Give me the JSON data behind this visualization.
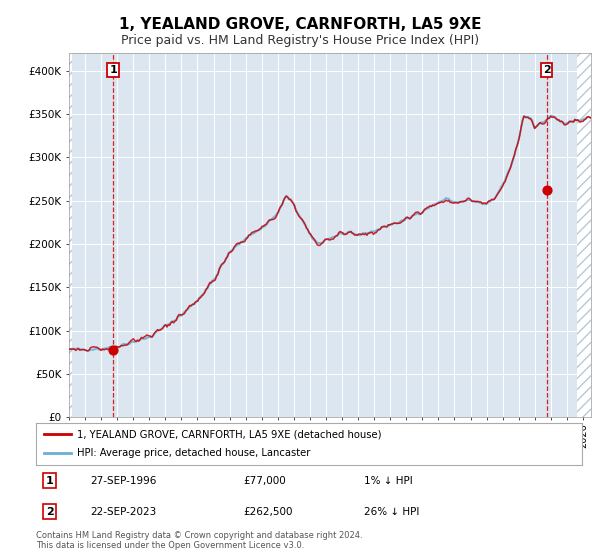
{
  "title": "1, YEALAND GROVE, CARNFORTH, LA5 9XE",
  "subtitle": "Price paid vs. HM Land Registry's House Price Index (HPI)",
  "title_fontsize": 11,
  "subtitle_fontsize": 9,
  "background_color": "#ffffff",
  "plot_bg_color": "#dce6f0",
  "grid_color": "#ffffff",
  "ylim": [
    0,
    420000
  ],
  "yticks": [
    0,
    50000,
    100000,
    150000,
    200000,
    250000,
    300000,
    350000,
    400000
  ],
  "ytick_labels": [
    "£0",
    "£50K",
    "£100K",
    "£150K",
    "£200K",
    "£250K",
    "£300K",
    "£350K",
    "£400K"
  ],
  "xmin_year": 1994.0,
  "xmax_year": 2026.5,
  "hpi_color": "#6baed6",
  "price_color": "#cc0000",
  "sale1_year": 1996.75,
  "sale1_price": 77000,
  "sale1_label": "1",
  "sale2_year": 2023.73,
  "sale2_price": 262500,
  "sale2_label": "2",
  "annotation1_date": "27-SEP-1996",
  "annotation1_price": "£77,000",
  "annotation1_hpi": "1% ↓ HPI",
  "annotation2_date": "22-SEP-2023",
  "annotation2_price": "£262,500",
  "annotation2_hpi": "26% ↓ HPI",
  "legend_line1": "1, YEALAND GROVE, CARNFORTH, LA5 9XE (detached house)",
  "legend_line2": "HPI: Average price, detached house, Lancaster",
  "footer": "Contains HM Land Registry data © Crown copyright and database right 2024.\nThis data is licensed under the Open Government Licence v3.0.",
  "xticks": [
    1994,
    1995,
    1996,
    1997,
    1998,
    1999,
    2000,
    2001,
    2002,
    2003,
    2004,
    2005,
    2006,
    2007,
    2008,
    2009,
    2010,
    2011,
    2012,
    2013,
    2014,
    2015,
    2016,
    2017,
    2018,
    2019,
    2020,
    2021,
    2022,
    2023,
    2024,
    2025,
    2026
  ],
  "waypoints_years": [
    1994,
    1996,
    1997,
    1998,
    1999,
    2000,
    2001,
    2002,
    2003,
    2004,
    2005,
    2006,
    2007,
    2007.5,
    2008,
    2009,
    2009.5,
    2010,
    2011,
    2012,
    2013,
    2014,
    2015,
    2016,
    2017,
    2017.5,
    2018,
    2019,
    2020,
    2020.5,
    2021,
    2021.5,
    2022,
    2022.3,
    2022.8,
    2023,
    2023.5,
    2024,
    2024.5,
    2025,
    2026
  ],
  "waypoints_hpi": [
    78000,
    79000,
    82000,
    87000,
    92000,
    105000,
    118000,
    135000,
    158000,
    190000,
    207000,
    218000,
    235000,
    255000,
    245000,
    210000,
    200000,
    205000,
    212000,
    210000,
    215000,
    222000,
    228000,
    238000,
    248000,
    252000,
    248000,
    250000,
    245000,
    252000,
    268000,
    288000,
    320000,
    348000,
    345000,
    335000,
    340000,
    348000,
    342000,
    338000,
    345000
  ]
}
